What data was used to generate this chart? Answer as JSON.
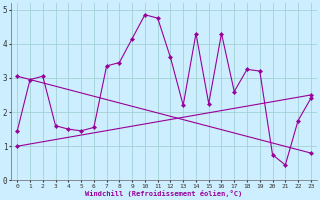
{
  "xlabel": "Windchill (Refroidissement éolien,°C)",
  "xlim": [
    -0.5,
    23.5
  ],
  "ylim": [
    0,
    5.2
  ],
  "xticks": [
    0,
    1,
    2,
    3,
    4,
    5,
    6,
    7,
    8,
    9,
    10,
    11,
    12,
    13,
    14,
    15,
    16,
    17,
    18,
    19,
    20,
    21,
    22,
    23
  ],
  "yticks": [
    0,
    1,
    2,
    3,
    4,
    5
  ],
  "bg_color": "#cceeff",
  "line_color": "#990099",
  "grid_color": "#99cccc",
  "line1_x": [
    0,
    1,
    2,
    3,
    4,
    5,
    6,
    7,
    8,
    9,
    10,
    11,
    12,
    13,
    14,
    15,
    16,
    17,
    18,
    19,
    20,
    21,
    22,
    23
  ],
  "line1_y": [
    1.45,
    2.95,
    3.05,
    1.6,
    1.5,
    1.45,
    1.55,
    3.35,
    3.45,
    4.15,
    4.85,
    4.75,
    3.6,
    2.2,
    4.3,
    2.25,
    4.3,
    2.6,
    3.25,
    3.2,
    0.75,
    0.45,
    1.75,
    2.4
  ],
  "line2_x": [
    0,
    23
  ],
  "line2_y": [
    3.05,
    0.8
  ],
  "line3_x": [
    0,
    23
  ],
  "line3_y": [
    1.0,
    2.5
  ]
}
